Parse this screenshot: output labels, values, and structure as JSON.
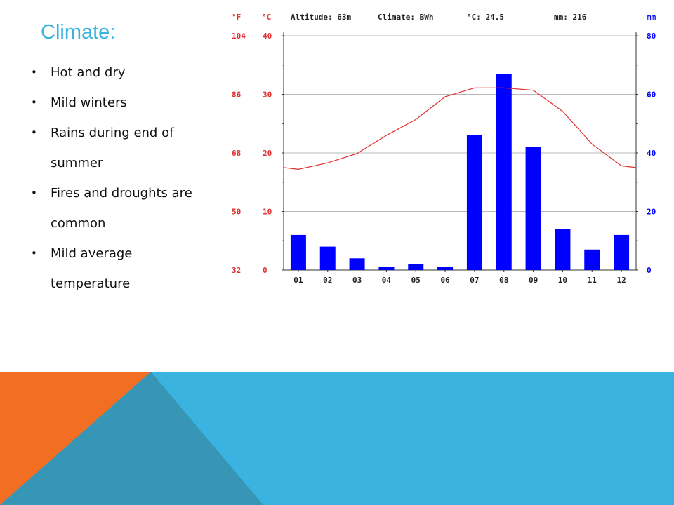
{
  "slide": {
    "title": "Climate:",
    "bullets": [
      "Hot and dry",
      "Mild winters",
      "Rains during end of summer",
      "Fires and droughts are common",
      "Mild average temperature"
    ]
  },
  "colors": {
    "title": "#3bb3e0",
    "temperature": "#e03030",
    "precipitation": "#0000ff",
    "banner_blue": "#3bb3e0",
    "banner_teal": "#3796b5",
    "banner_orange": "#f26e22"
  },
  "chart_data": {
    "type": "bar",
    "header": {
      "left_unit_f": "°F",
      "left_unit_c": "°C",
      "altitude": "Altitude: 63m",
      "climate": "Climate: BWh",
      "avg_temp": "°C: 24.5",
      "total_precip": "mm: 216",
      "right_unit": "mm"
    },
    "categories": [
      "01",
      "02",
      "03",
      "04",
      "05",
      "06",
      "07",
      "08",
      "09",
      "10",
      "11",
      "12"
    ],
    "series": [
      {
        "kind": "bar",
        "unit": "mm",
        "values": [
          12,
          8,
          4,
          1,
          2,
          1,
          46,
          67,
          42,
          14,
          7,
          12
        ]
      },
      {
        "kind": "line",
        "unit": "°C",
        "values": [
          17.2,
          18.3,
          19.9,
          23.0,
          25.7,
          29.6,
          31.1,
          31.1,
          30.7,
          27.1,
          21.5,
          17.8
        ]
      }
    ],
    "y_left_c": {
      "range": [
        0,
        40
      ],
      "ticks": [
        "0",
        "10",
        "20",
        "30",
        "40"
      ]
    },
    "y_left_f": {
      "ticks": [
        "32",
        "50",
        "68",
        "86",
        "104"
      ]
    },
    "y_right_mm": {
      "range": [
        0,
        80
      ],
      "ticks": [
        "0",
        "20",
        "40",
        "60",
        "80"
      ]
    },
    "grid": true,
    "line_start_c": 17.5,
    "line_end_c": 17.5
  }
}
